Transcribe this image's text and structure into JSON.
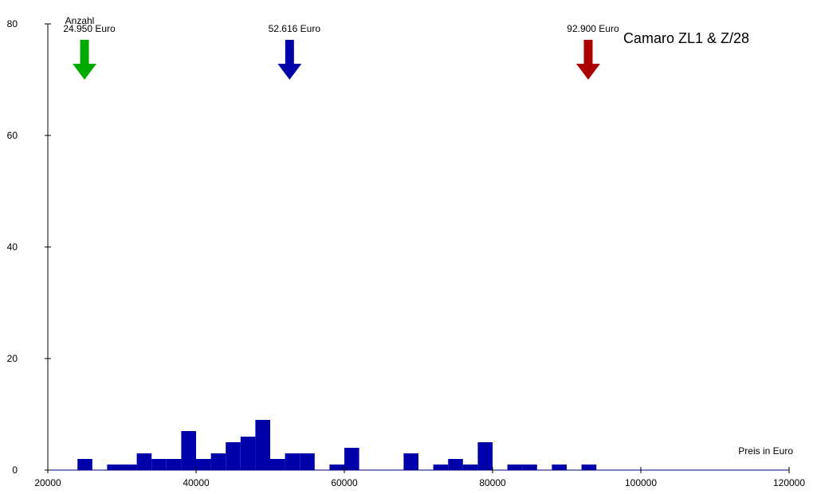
{
  "chart_data": {
    "type": "bar",
    "title": "Camaro ZL1 & Z/28",
    "xlabel": "Preis in Euro",
    "ylabel": "Anzahl",
    "xlim": [
      20000,
      120000
    ],
    "ylim": [
      0,
      80
    ],
    "xticks": [
      20000,
      40000,
      60000,
      80000,
      100000,
      120000
    ],
    "yticks": [
      0,
      20,
      40,
      60,
      80
    ],
    "bin_width": 2000,
    "bar_color": "#0000AA",
    "bins": [
      {
        "x": 24000,
        "value": 2
      },
      {
        "x": 28000,
        "value": 1
      },
      {
        "x": 30000,
        "value": 1
      },
      {
        "x": 32000,
        "value": 3
      },
      {
        "x": 34000,
        "value": 2
      },
      {
        "x": 36000,
        "value": 2
      },
      {
        "x": 38000,
        "value": 7
      },
      {
        "x": 40000,
        "value": 2
      },
      {
        "x": 42000,
        "value": 3
      },
      {
        "x": 44000,
        "value": 5
      },
      {
        "x": 46000,
        "value": 6
      },
      {
        "x": 48000,
        "value": 9
      },
      {
        "x": 50000,
        "value": 2
      },
      {
        "x": 52000,
        "value": 3
      },
      {
        "x": 54000,
        "value": 3
      },
      {
        "x": 58000,
        "value": 1
      },
      {
        "x": 60000,
        "value": 4
      },
      {
        "x": 68000,
        "value": 3
      },
      {
        "x": 72000,
        "value": 1
      },
      {
        "x": 74000,
        "value": 2
      },
      {
        "x": 76000,
        "value": 1
      },
      {
        "x": 78000,
        "value": 5
      },
      {
        "x": 82000,
        "value": 1
      },
      {
        "x": 84000,
        "value": 1
      },
      {
        "x": 88000,
        "value": 1
      },
      {
        "x": 92000,
        "value": 1
      }
    ],
    "markers": [
      {
        "value": 24950,
        "label": "24.950 Euro",
        "color": "#00AA00"
      },
      {
        "value": 52616,
        "label": "52.616 Euro",
        "color": "#0000AA"
      },
      {
        "value": 92900,
        "label": "92.900 Euro",
        "color": "#AA0000"
      }
    ],
    "grid": false
  }
}
